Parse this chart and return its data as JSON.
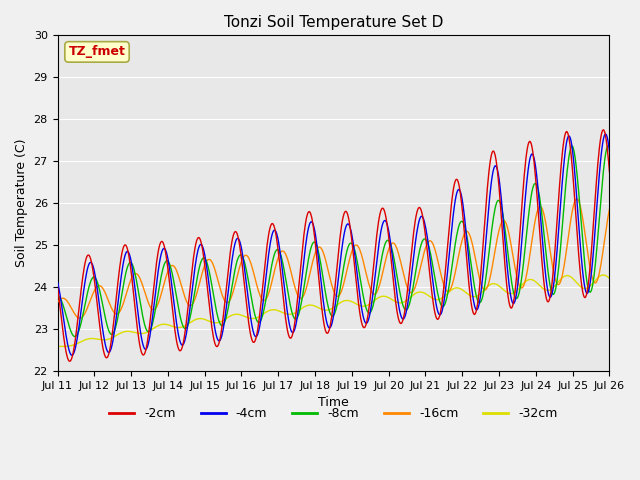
{
  "title": "Tonzi Soil Temperature Set D",
  "xlabel": "Time",
  "ylabel": "Soil Temperature (C)",
  "ylim": [
    22.0,
    30.0
  ],
  "yticks": [
    22.0,
    23.0,
    24.0,
    25.0,
    26.0,
    27.0,
    28.0,
    29.0,
    30.0
  ],
  "series_labels": [
    "-2cm",
    "-4cm",
    "-8cm",
    "-16cm",
    "-32cm"
  ],
  "series_colors": [
    "#dd0000",
    "#0000ee",
    "#00bb00",
    "#ff8800",
    "#dddd00"
  ],
  "annotation_text": "TZ_fmet",
  "annotation_color": "#cc0000",
  "annotation_bg": "#ffffcc",
  "annotation_border": "#aaaa44",
  "background_color": "#e8e8e8",
  "figure_bg": "#f0f0f0",
  "n_days": 15,
  "tick_labels": [
    "Jul 11",
    "Jul 12",
    "Jul 13",
    "Jul 14",
    "Jul 15",
    "Jul 16",
    "Jul 17",
    "Jul 18",
    "Jul 19",
    "Jul 20",
    "Jul 21",
    "Jul 22",
    "Jul 23",
    "Jul 24",
    "Jul 25",
    "Jul 26"
  ],
  "font_size_title": 11,
  "font_size_labels": 9,
  "font_size_ticks": 8,
  "font_size_legend": 9,
  "linewidth": 1.0,
  "peak_hour": 14.0,
  "n_points_per_day": 48,
  "base_2cm": [
    22.2,
    22.3,
    22.35,
    22.45,
    22.55,
    22.65,
    22.75,
    22.85,
    23.0,
    23.1,
    23.2,
    23.3,
    23.45,
    23.6,
    23.75
  ],
  "amp_2cm": [
    2.4,
    2.5,
    2.7,
    2.65,
    2.65,
    2.7,
    2.8,
    3.0,
    2.8,
    2.8,
    2.7,
    3.4,
    3.9,
    3.9,
    4.0
  ],
  "base_4cm": [
    22.35,
    22.42,
    22.48,
    22.58,
    22.68,
    22.78,
    22.88,
    22.98,
    23.1,
    23.2,
    23.3,
    23.4,
    23.55,
    23.7,
    23.85
  ],
  "amp_4cm": [
    2.0,
    2.2,
    2.4,
    2.35,
    2.35,
    2.4,
    2.5,
    2.6,
    2.4,
    2.4,
    2.4,
    3.0,
    3.4,
    3.5,
    3.8
  ],
  "base_8cm": [
    22.8,
    22.85,
    22.9,
    22.98,
    23.05,
    23.12,
    23.2,
    23.28,
    23.35,
    23.42,
    23.5,
    23.58,
    23.68,
    23.78,
    23.88
  ],
  "amp_8cm": [
    1.0,
    1.4,
    1.7,
    1.65,
    1.65,
    1.65,
    1.7,
    1.8,
    1.7,
    1.7,
    1.65,
    2.0,
    2.4,
    2.7,
    3.5
  ],
  "base_16cm": [
    23.2,
    23.3,
    23.4,
    23.5,
    23.6,
    23.65,
    23.7,
    23.75,
    23.8,
    23.85,
    23.88,
    23.9,
    23.95,
    24.0,
    24.1
  ],
  "amp_16cm": [
    0.5,
    0.7,
    0.9,
    1.0,
    1.05,
    1.1,
    1.15,
    1.2,
    1.2,
    1.2,
    1.2,
    1.4,
    1.6,
    1.9,
    2.0
  ],
  "base_32cm": [
    22.55,
    22.7,
    22.85,
    23.0,
    23.12,
    23.22,
    23.32,
    23.42,
    23.52,
    23.6,
    23.68,
    23.75,
    23.82,
    23.9,
    23.97
  ],
  "amp_32cm": [
    0.05,
    0.1,
    0.12,
    0.14,
    0.15,
    0.15,
    0.16,
    0.17,
    0.18,
    0.2,
    0.22,
    0.25,
    0.28,
    0.3,
    0.32
  ],
  "phase_2cm": 0.0,
  "phase_4cm": 0.06,
  "phase_8cm": 0.14,
  "phase_16cm": 0.28,
  "phase_32cm": 0.0
}
